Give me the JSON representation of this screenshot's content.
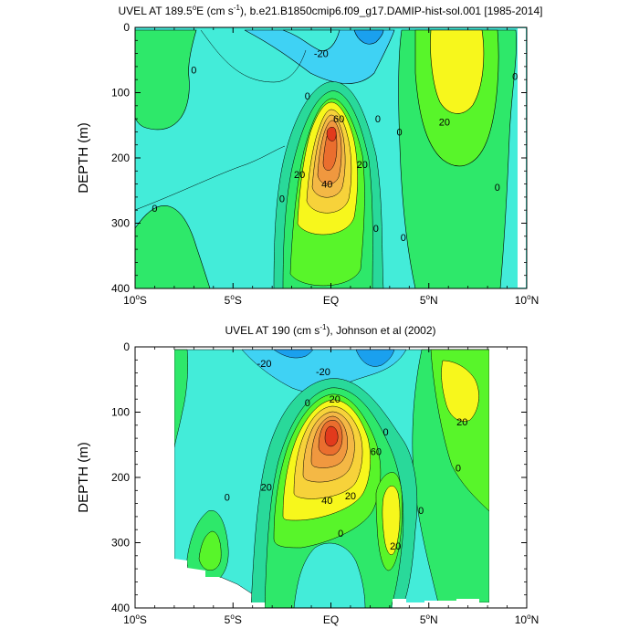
{
  "palette": {
    "neg30": "#1aa0ee",
    "neg20": "#3fd2f4",
    "neg10": "#43ecd9",
    "zero": "#29d99a",
    "pos10": "#2ee86a",
    "pos20": "#58f52a",
    "pos30": "#f7f71c",
    "pos40": "#f7d23a",
    "pos50": "#f4b845",
    "pos60": "#f0983f",
    "pos70": "#ea6e2e",
    "pos80": "#e23a1c"
  },
  "chart_data": [
    {
      "type": "contour",
      "title": "UVEL AT 189.5°E (cm s⁻¹), b.e21.B1850cmip6.f09_g17.DAMIP-hist-sol.001 [1985-2014]",
      "title_parts": {
        "main": "UVEL AT 189.5",
        "deg": "o",
        "unit_open": "E (cm s",
        "exp": "-1",
        "rest": "), b.e21.B1850cmip6.f09_g17.DAMIP-hist-sol.001 [1985-2014]"
      },
      "ylabel": "DEPTH (m)",
      "xlim": [
        -10,
        10
      ],
      "ylim": [
        400,
        0
      ],
      "x_ticks": [
        -10,
        -5,
        0,
        5,
        10
      ],
      "x_tick_labels": [
        {
          "num": "10",
          "deg": "o",
          "hem": "S"
        },
        {
          "num": "5",
          "deg": "o",
          "hem": "S"
        },
        {
          "num": "EQ",
          "deg": "",
          "hem": ""
        },
        {
          "num": "5",
          "deg": "o",
          "hem": "N"
        },
        {
          "num": "10",
          "deg": "o",
          "hem": "N"
        }
      ],
      "y_ticks": [
        0,
        100,
        200,
        300,
        400
      ],
      "y_tick_labels": [
        "0",
        "100",
        "200",
        "300",
        "400"
      ],
      "data_extent_x": [
        -9.5,
        9.5
      ],
      "features": [
        {
          "name": "Equatorial Undercurrent core",
          "lat": -0.2,
          "depth": 160,
          "max": 80
        },
        {
          "name": "North Equatorial Countercurrent",
          "lat": 5.8,
          "depth": 80,
          "max": 35
        },
        {
          "name": "South Equatorial Current",
          "lat": 1.5,
          "depth": 10,
          "min": -30
        }
      ],
      "contour_labels": [
        {
          "text": "-20",
          "lat": -0.5,
          "depth": 40
        },
        {
          "text": "20",
          "lat": 5.8,
          "depth": 145
        },
        {
          "text": "60",
          "lat": 0.4,
          "depth": 140
        },
        {
          "text": "20",
          "lat": 1.6,
          "depth": 210
        },
        {
          "text": "20",
          "lat": -1.6,
          "depth": 225
        },
        {
          "text": "40",
          "lat": -0.2,
          "depth": 240
        },
        {
          "text": "0",
          "lat": -7.0,
          "depth": 65
        },
        {
          "text": "0",
          "lat": -1.2,
          "depth": 105
        },
        {
          "text": "0",
          "lat": 2.4,
          "depth": 140
        },
        {
          "text": "0",
          "lat": 3.5,
          "depth": 160
        },
        {
          "text": "0",
          "lat": -2.5,
          "depth": 262
        },
        {
          "text": "0",
          "lat": -9.0,
          "depth": 277
        },
        {
          "text": "0",
          "lat": 2.3,
          "depth": 308
        },
        {
          "text": "0",
          "lat": 3.7,
          "depth": 322
        },
        {
          "text": "0",
          "lat": 8.5,
          "depth": 245
        },
        {
          "text": "0",
          "lat": 9.4,
          "depth": 75
        }
      ]
    },
    {
      "type": "contour",
      "title": "UVEL AT 190 (cm s⁻¹), Johnson et al (2002)",
      "title_parts": {
        "main": "UVEL AT 190 (cm s",
        "deg": "",
        "unit_open": "",
        "exp": "-1",
        "rest": "), Johnson et al (2002)"
      },
      "ylabel": "DEPTH (m)",
      "xlim": [
        -10,
        10
      ],
      "ylim": [
        400,
        0
      ],
      "x_ticks": [
        -10,
        -5,
        0,
        5,
        10
      ],
      "x_tick_labels": [
        {
          "num": "10",
          "deg": "o",
          "hem": "S"
        },
        {
          "num": "5",
          "deg": "o",
          "hem": "S"
        },
        {
          "num": "EQ",
          "deg": "",
          "hem": ""
        },
        {
          "num": "5",
          "deg": "o",
          "hem": "N"
        },
        {
          "num": "10",
          "deg": "o",
          "hem": "N"
        }
      ],
      "y_ticks": [
        0,
        100,
        200,
        300,
        400
      ],
      "y_tick_labels": [
        "0",
        "100",
        "200",
        "300",
        "400"
      ],
      "data_extent_x": [
        -8,
        8
      ],
      "features": [
        {
          "name": "Equatorial Undercurrent core",
          "lat": 0,
          "depth": 150,
          "max": 90
        },
        {
          "name": "North Equatorial Countercurrent",
          "lat": 6.5,
          "depth": 80,
          "max": 30
        },
        {
          "name": "South Equatorial Current",
          "lat": 2,
          "depth": 20,
          "min": -30
        }
      ],
      "contour_labels": [
        {
          "text": "-20",
          "lat": -3.4,
          "depth": 25
        },
        {
          "text": "-20",
          "lat": -0.4,
          "depth": 38
        },
        {
          "text": "20",
          "lat": 6.7,
          "depth": 115
        },
        {
          "text": "20",
          "lat": 0.2,
          "depth": 80
        },
        {
          "text": "60",
          "lat": 2.3,
          "depth": 160
        },
        {
          "text": "20",
          "lat": -3.3,
          "depth": 215
        },
        {
          "text": "20",
          "lat": 1.0,
          "depth": 228
        },
        {
          "text": "40",
          "lat": -0.2,
          "depth": 235
        },
        {
          "text": "20",
          "lat": 3.3,
          "depth": 305
        },
        {
          "text": "0",
          "lat": -1.2,
          "depth": 85
        },
        {
          "text": "0",
          "lat": 2.8,
          "depth": 130
        },
        {
          "text": "0",
          "lat": 6.5,
          "depth": 185
        },
        {
          "text": "0",
          "lat": -5.3,
          "depth": 230
        },
        {
          "text": "0",
          "lat": 4.6,
          "depth": 250
        },
        {
          "text": "0",
          "lat": 0.5,
          "depth": 285
        }
      ]
    }
  ]
}
